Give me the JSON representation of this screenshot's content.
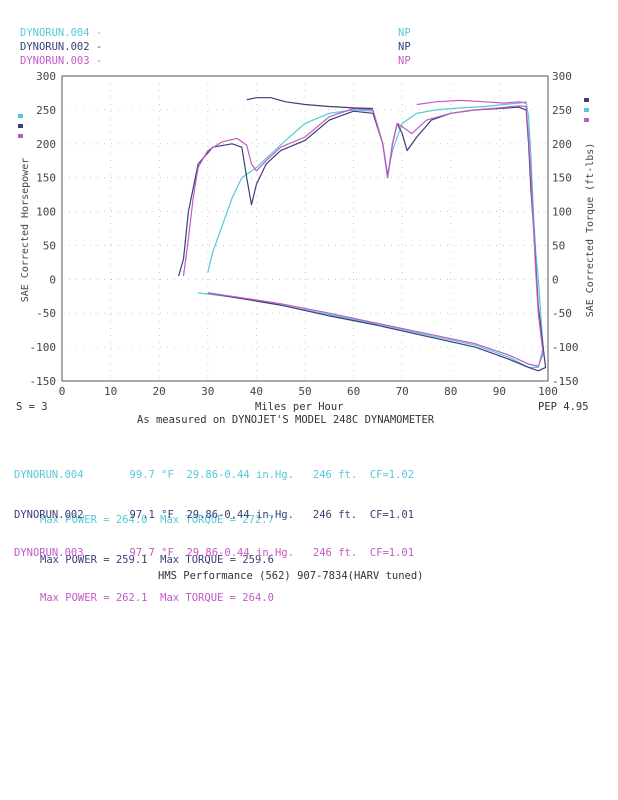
{
  "legend": {
    "runs": [
      {
        "name": "DYNORUN.004 -",
        "flag": "NP",
        "color": "#57c8d8"
      },
      {
        "name": "DYNORUN.002 -",
        "flag": "NP",
        "color": "#3a3f7a"
      },
      {
        "name": "DYNORUN.003 -",
        "flag": "NP",
        "color": "#c45ac4"
      }
    ]
  },
  "footer": {
    "smoothing": "S = 3",
    "xlabel": "Miles per Hour",
    "measured": "As measured on DYNOJET'S MODEL 248C DYNAMOMETER",
    "pep": "PEP 4.95",
    "shop": "HMS Performance (562) 907-7834(HARV tuned)"
  },
  "runs": [
    {
      "name": "DYNORUN.004",
      "temp": "99.7 °F",
      "pressure": "29.86-0.44 in.Hg.",
      "altitude": "246 ft.",
      "cf": "CF=1.02",
      "max_power_label": "Max POWER = 264.0",
      "max_torque_label": "Max TORQUE = 272.7",
      "color": "#57c8d8"
    },
    {
      "name": "DYNORUN.002",
      "temp": "97.1 °F",
      "pressure": "29.86-0.44 in.Hg.",
      "altitude": "246 ft.",
      "cf": "CF=1.01",
      "max_power_label": "Max POWER = 259.1",
      "max_torque_label": "Max TORQUE = 259.6",
      "color": "#3a3f7a"
    },
    {
      "name": "DYNORUN.003",
      "temp": "97.7 °F",
      "pressure": "29.86-0.44 in.Hg.",
      "altitude": "246 ft.",
      "cf": "CF=1.01",
      "max_power_label": "Max POWER = 262.1",
      "max_torque_label": "Max TORQUE = 264.0",
      "color": "#c45ac4"
    }
  ],
  "chart_data": {
    "type": "line",
    "xlabel": "Miles per Hour",
    "ylabel_left": "SAE Corrected Horsepower",
    "ylabel_right": "SAE Corrected Torque (ft-lbs)",
    "xlim": [
      0,
      100
    ],
    "ylim": [
      -150,
      300
    ],
    "x_ticks": [
      0,
      10,
      20,
      30,
      40,
      50,
      60,
      70,
      80,
      90,
      100
    ],
    "y_ticks": [
      300,
      250,
      200,
      150,
      100,
      50,
      0,
      -50,
      -100,
      -150
    ],
    "grid": true,
    "series": [
      {
        "name": "DYNORUN.004",
        "color": "#57c8d8",
        "points": [
          [
            30,
            10
          ],
          [
            31,
            40
          ],
          [
            33,
            80
          ],
          [
            35,
            120
          ],
          [
            37,
            150
          ],
          [
            40,
            165
          ],
          [
            43,
            185
          ],
          [
            46,
            205
          ],
          [
            50,
            230
          ],
          [
            55,
            245
          ],
          [
            60,
            250
          ],
          [
            64,
            248
          ],
          [
            66,
            200
          ],
          [
            67,
            155
          ],
          [
            68,
            190
          ],
          [
            70,
            230
          ],
          [
            73,
            245
          ],
          [
            77,
            250
          ],
          [
            82,
            253
          ],
          [
            87,
            255
          ],
          [
            91,
            258
          ],
          [
            94,
            260
          ],
          [
            95.5,
            262
          ],
          [
            96,
            240
          ],
          [
            96.5,
            180
          ],
          [
            97,
            100
          ],
          [
            97.5,
            40
          ],
          [
            98,
            0
          ],
          [
            98.5,
            -50
          ],
          [
            99,
            -100
          ],
          [
            98,
            -130
          ],
          [
            96,
            -130
          ],
          [
            92,
            -115
          ],
          [
            85,
            -97
          ],
          [
            75,
            -82
          ],
          [
            65,
            -66
          ],
          [
            55,
            -52
          ],
          [
            45,
            -38
          ],
          [
            35,
            -26
          ],
          [
            28,
            -20
          ]
        ]
      },
      {
        "name": "DYNORUN.002",
        "color": "#3a3f7a",
        "points": [
          [
            24,
            5
          ],
          [
            25,
            30
          ],
          [
            26,
            100
          ],
          [
            28,
            170
          ],
          [
            31,
            195
          ],
          [
            35,
            200
          ],
          [
            37,
            195
          ],
          [
            38,
            150
          ],
          [
            39,
            110
          ],
          [
            40,
            140
          ],
          [
            42,
            170
          ],
          [
            45,
            190
          ],
          [
            50,
            205
          ],
          [
            55,
            235
          ],
          [
            60,
            248
          ],
          [
            64,
            245
          ],
          [
            66,
            200
          ],
          [
            67,
            150
          ],
          [
            68,
            200
          ],
          [
            69,
            230
          ],
          [
            70,
            215
          ],
          [
            71,
            190
          ],
          [
            73,
            210
          ],
          [
            76,
            235
          ],
          [
            80,
            245
          ],
          [
            85,
            250
          ],
          [
            90,
            252
          ],
          [
            94,
            254
          ],
          [
            95.5,
            250
          ],
          [
            96,
            200
          ],
          [
            96.5,
            130
          ],
          [
            97,
            80
          ],
          [
            97.5,
            20
          ],
          [
            98,
            -40
          ],
          [
            99,
            -100
          ],
          [
            99.5,
            -130
          ],
          [
            98,
            -135
          ],
          [
            96,
            -130
          ],
          [
            92,
            -118
          ],
          [
            85,
            -100
          ],
          [
            75,
            -84
          ],
          [
            65,
            -68
          ],
          [
            55,
            -54
          ],
          [
            45,
            -38
          ],
          [
            35,
            -26
          ],
          [
            30,
            -20
          ]
        ]
      },
      {
        "name": "DYNORUN.003",
        "color": "#c45ac4",
        "points": [
          [
            25,
            5
          ],
          [
            26,
            60
          ],
          [
            27,
            120
          ],
          [
            28,
            165
          ],
          [
            30,
            190
          ],
          [
            33,
            203
          ],
          [
            36,
            208
          ],
          [
            38,
            198
          ],
          [
            39,
            170
          ],
          [
            40,
            160
          ],
          [
            42,
            175
          ],
          [
            45,
            195
          ],
          [
            50,
            210
          ],
          [
            55,
            240
          ],
          [
            60,
            252
          ],
          [
            64,
            250
          ],
          [
            66,
            200
          ],
          [
            67,
            150
          ],
          [
            68,
            200
          ],
          [
            69,
            230
          ],
          [
            70,
            225
          ],
          [
            72,
            215
          ],
          [
            75,
            235
          ],
          [
            80,
            245
          ],
          [
            85,
            250
          ],
          [
            90,
            253
          ],
          [
            94,
            256
          ],
          [
            95.5,
            255
          ],
          [
            96,
            210
          ],
          [
            96.5,
            150
          ],
          [
            97,
            80
          ],
          [
            97.5,
            10
          ],
          [
            98,
            -50
          ],
          [
            99,
            -110
          ],
          [
            98,
            -128
          ],
          [
            96,
            -125
          ],
          [
            92,
            -112
          ],
          [
            85,
            -95
          ],
          [
            75,
            -80
          ],
          [
            65,
            -65
          ],
          [
            55,
            -50
          ],
          [
            45,
            -36
          ],
          [
            35,
            -25
          ],
          [
            30,
            -20
          ]
        ]
      },
      {
        "name": "DYNORUN.002 torque",
        "color": "#3a3f7a",
        "points": [
          [
            38,
            265
          ],
          [
            40,
            268
          ],
          [
            43,
            268
          ],
          [
            46,
            262
          ],
          [
            50,
            258
          ],
          [
            55,
            255
          ],
          [
            60,
            253
          ],
          [
            64,
            252
          ]
        ]
      },
      {
        "name": "DYNORUN.003 torque",
        "color": "#c45ac4",
        "points": [
          [
            73,
            258
          ],
          [
            77,
            262
          ],
          [
            82,
            264
          ],
          [
            87,
            262
          ],
          [
            91,
            260
          ],
          [
            94,
            262
          ],
          [
            95.5,
            260
          ]
        ]
      }
    ]
  }
}
